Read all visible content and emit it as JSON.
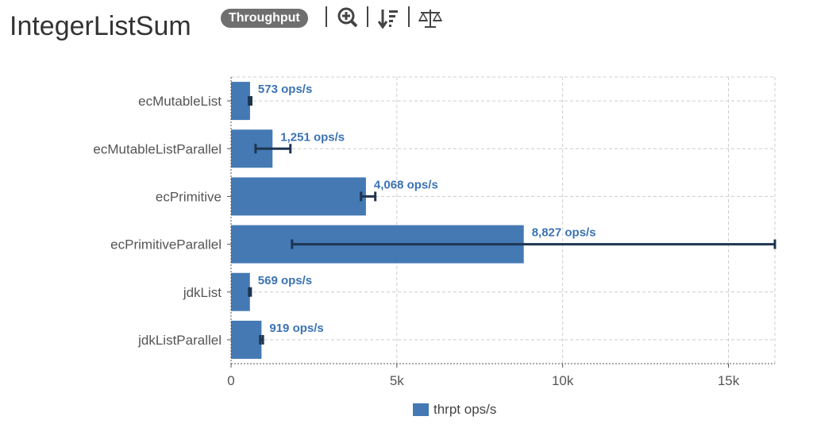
{
  "header": {
    "title": "IntegerListSum",
    "badge": "Throughput",
    "icons": [
      "zoom-in-icon",
      "sort-icon",
      "balance-scale-icon"
    ]
  },
  "chart_data": {
    "type": "bar",
    "orientation": "horizontal",
    "categories": [
      "ecMutableList",
      "ecMutableListParallel",
      "ecPrimitive",
      "ecPrimitiveParallel",
      "jdkList",
      "jdkListParallel"
    ],
    "series": [
      {
        "name": "thrpt ops/s",
        "values": [
          573,
          1251,
          4068,
          8827,
          569,
          919
        ],
        "labels": [
          "573 ops/s",
          "1,251 ops/s",
          "4,068 ops/s",
          "8,827 ops/s",
          "569 ops/s",
          "919 ops/s"
        ],
        "error_low": [
          540,
          740,
          3920,
          1840,
          545,
          880
        ],
        "error_high": [
          610,
          1790,
          4350,
          16400,
          595,
          960
        ]
      }
    ],
    "xlim": [
      0,
      16400
    ],
    "xticks": [
      0,
      5000,
      10000,
      15000
    ],
    "xtick_labels": [
      "0",
      "5k",
      "10k",
      "15k"
    ],
    "grid": true,
    "legend": "bottom",
    "color": "#4479b4",
    "label_color": "#3b73b3",
    "error_color": "#1e3550"
  }
}
